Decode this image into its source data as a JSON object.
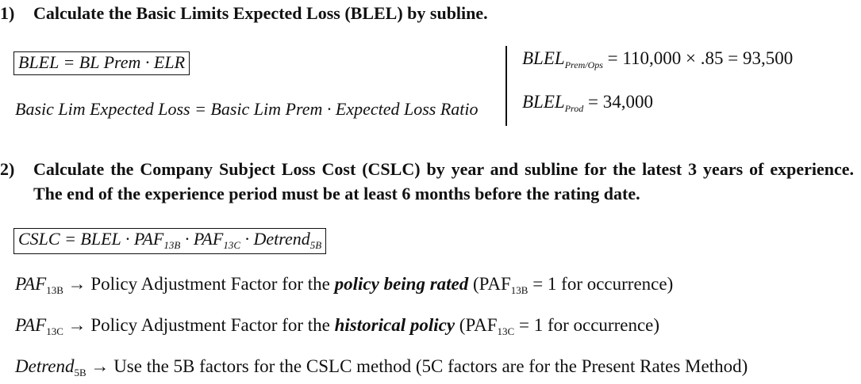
{
  "step1": {
    "number": "1)",
    "heading": "Calculate the Basic Limits Expected Loss (BLEL) by subline."
  },
  "formula1": {
    "text": "BLEL = BL Prem · ELR"
  },
  "formula1_desc": {
    "text": "Basic Lim Expected Loss = Basic Lim Prem · Expected Loss Ratio"
  },
  "blel_prem_ops": {
    "label": "BLEL",
    "sub": "Prem/Ops",
    "value": "= 110,000 × .85 = 93,500"
  },
  "blel_prod": {
    "label": "BLEL",
    "sub": "Prod",
    "value": "= 34,000"
  },
  "step2": {
    "number": "2)",
    "heading": "Calculate the Company Subject Loss Cost (CSLC) by year and subline for the latest 3 years of experience. The end of the experience period must be at least 6 months before the rating date."
  },
  "formula2": {
    "lhs": "CSLC = BLEL · ",
    "paf": "PAF",
    "sub13b": "13B",
    "dot": " · ",
    "sub13c": "13C",
    "detrend": "Detrend",
    "sub5b": "5B"
  },
  "defs": [
    {
      "var": "PAF",
      "var_sub": "13B",
      "arrow": "→",
      "pre": "Policy Adjustment Factor for the ",
      "emph": "policy being rated",
      "post_a": " (PAF",
      "post_sub": "13B",
      "post_b": " = 1 for occurrence)"
    },
    {
      "var": "PAF",
      "var_sub": "13C",
      "arrow": "→",
      "pre": "Policy Adjustment Factor for the ",
      "emph": "historical policy",
      "post_a": " (PAF",
      "post_sub": "13C",
      "post_b": " = 1 for occurrence)"
    },
    {
      "var": "Detrend",
      "var_sub": "5B",
      "arrow": "→",
      "text": "Use the 5B factors for the CSLC method (5C factors are for the Present Rates Method)"
    }
  ]
}
